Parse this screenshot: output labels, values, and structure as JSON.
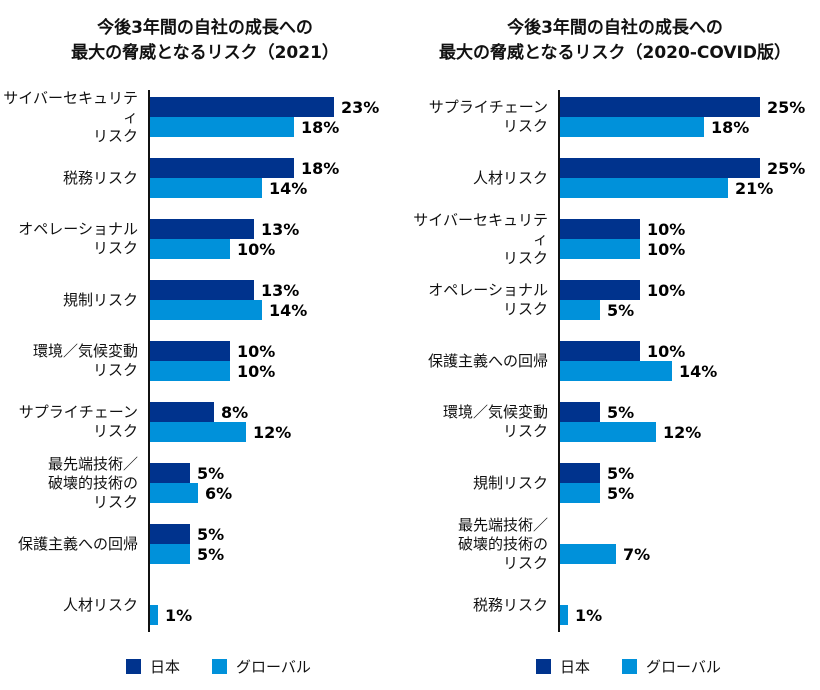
{
  "colors": {
    "japan": "#00338D",
    "global": "#0091DA",
    "axis": "#111111",
    "text": "#000000",
    "background": "#ffffff"
  },
  "legend": {
    "items": [
      {
        "label": "日本",
        "color": "#00338D"
      },
      {
        "label": "グローバル",
        "color": "#0091DA"
      }
    ],
    "position": "bottom"
  },
  "chart_data": [
    {
      "type": "bar",
      "orientation": "horizontal",
      "title": "今後3年間の自社の成長への最大の脅威となるリスク（2021）",
      "title_lines": [
        "今後3年間の自社の成長への",
        "最大の脅威となるリスク（2021）"
      ],
      "unit": "%",
      "xlim": [
        0,
        26
      ],
      "grid": false,
      "legend_position": "bottom",
      "categories": [
        "サイバーセキュリティリスク",
        "税務リスク",
        "オペレーショナルリスク",
        "規制リスク",
        "環境／気候変動リスク",
        "サプライチェーンリスク",
        "最先端技術／破壊的技術のリスク",
        "保護主義への回帰",
        "人材リスク"
      ],
      "category_lines": [
        [
          "サイバーセキュリティ",
          "リスク"
        ],
        [
          "税務リスク"
        ],
        [
          "オペレーショナル",
          "リスク"
        ],
        [
          "規制リスク"
        ],
        [
          "環境／気候変動",
          "リスク"
        ],
        [
          "サプライチェーン",
          "リスク"
        ],
        [
          "最先端技術／",
          "破壊的技術の",
          "リスク"
        ],
        [
          "保護主義への回帰"
        ],
        [
          "人材リスク"
        ]
      ],
      "series": [
        {
          "name": "日本",
          "color": "#00338D",
          "values": [
            23,
            18,
            13,
            13,
            10,
            8,
            5,
            5,
            null
          ]
        },
        {
          "name": "グローバル",
          "color": "#0091DA",
          "values": [
            18,
            14,
            10,
            14,
            10,
            12,
            6,
            5,
            1
          ]
        }
      ]
    },
    {
      "type": "bar",
      "orientation": "horizontal",
      "title": "今後3年間の自社の成長への最大の脅威となるリスク（2020-COVID版）",
      "title_lines": [
        "今後3年間の自社の成長への",
        "最大の脅威となるリスク（2020-COVID版）"
      ],
      "unit": "%",
      "xlim": [
        0,
        26
      ],
      "grid": false,
      "legend_position": "bottom",
      "categories": [
        "サプライチェーンリスク",
        "人材リスク",
        "サイバーセキュリティリスク",
        "オペレーショナルリスク",
        "保護主義への回帰",
        "環境／気候変動リスク",
        "規制リスク",
        "最先端技術／破壊的技術のリスク",
        "税務リスク"
      ],
      "category_lines": [
        [
          "サプライチェーン",
          "リスク"
        ],
        [
          "人材リスク"
        ],
        [
          "サイバーセキュリティ",
          "リスク"
        ],
        [
          "オペレーショナル",
          "リスク"
        ],
        [
          "保護主義への回帰"
        ],
        [
          "環境／気候変動",
          "リスク"
        ],
        [
          "規制リスク"
        ],
        [
          "最先端技術／",
          "破壊的技術の",
          "リスク"
        ],
        [
          "税務リスク"
        ]
      ],
      "series": [
        {
          "name": "日本",
          "color": "#00338D",
          "values": [
            25,
            25,
            10,
            10,
            10,
            5,
            5,
            null,
            null
          ]
        },
        {
          "name": "グローバル",
          "color": "#0091DA",
          "values": [
            18,
            21,
            10,
            5,
            14,
            12,
            5,
            7,
            1
          ]
        }
      ]
    }
  ]
}
